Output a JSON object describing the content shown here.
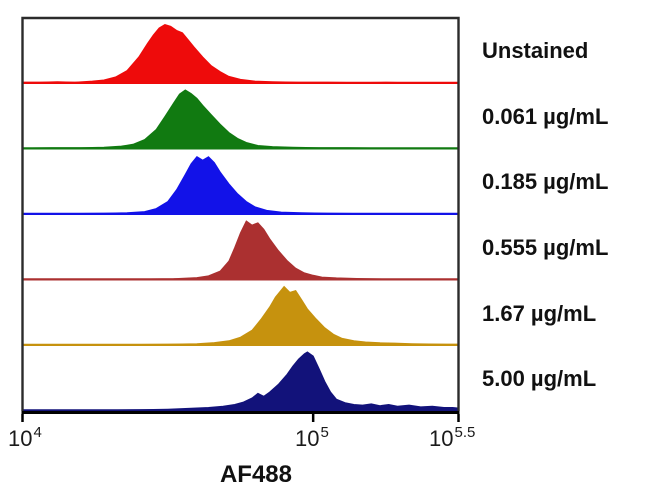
{
  "colors": {
    "background": "#ffffff",
    "frame": "#2b2b2b",
    "axis": "#000000",
    "text": "#111111"
  },
  "chart_data": {
    "type": "area",
    "subtype": "offset-overlay-flow-cytometry-histograms",
    "title": "",
    "xlabel": "AF488",
    "ylabel": "",
    "x_scale": "log10",
    "x_range_log10": [
      4.0,
      5.5
    ],
    "x_tick_logs": [
      4.0,
      5.0,
      5.5
    ],
    "x_ticks": [
      {
        "base": "10",
        "exp": "4"
      },
      {
        "base": "10",
        "exp": "5"
      },
      {
        "base": "10",
        "exp": "5.5"
      }
    ],
    "grid": false,
    "legend_position": "right",
    "series": [
      {
        "label": "Unstained",
        "color": "#ee0b0b",
        "peak_x_log10": 4.49,
        "points": [
          [
            4.0,
            0.02
          ],
          [
            4.06,
            0.02
          ],
          [
            4.12,
            0.03
          ],
          [
            4.18,
            0.02
          ],
          [
            4.24,
            0.04
          ],
          [
            4.28,
            0.06
          ],
          [
            4.32,
            0.11
          ],
          [
            4.36,
            0.22
          ],
          [
            4.4,
            0.45
          ],
          [
            4.43,
            0.68
          ],
          [
            4.45,
            0.82
          ],
          [
            4.47,
            0.94
          ],
          [
            4.49,
            1.0
          ],
          [
            4.51,
            0.97
          ],
          [
            4.53,
            0.9
          ],
          [
            4.55,
            0.86
          ],
          [
            4.57,
            0.74
          ],
          [
            4.59,
            0.62
          ],
          [
            4.62,
            0.45
          ],
          [
            4.65,
            0.3
          ],
          [
            4.68,
            0.2
          ],
          [
            4.71,
            0.12
          ],
          [
            4.75,
            0.07
          ],
          [
            4.8,
            0.04
          ],
          [
            4.86,
            0.03
          ],
          [
            4.95,
            0.02
          ],
          [
            5.05,
            0.02
          ],
          [
            5.15,
            0.015
          ],
          [
            5.25,
            0.02
          ],
          [
            5.35,
            0.01
          ],
          [
            5.45,
            0.01
          ],
          [
            5.5,
            0.01
          ]
        ]
      },
      {
        "label": "0.061 µg/mL",
        "color": "#117a11",
        "peak_x_log10": 4.56,
        "points": [
          [
            4.0,
            0.015
          ],
          [
            4.1,
            0.02
          ],
          [
            4.2,
            0.02
          ],
          [
            4.28,
            0.03
          ],
          [
            4.34,
            0.05
          ],
          [
            4.38,
            0.08
          ],
          [
            4.42,
            0.16
          ],
          [
            4.46,
            0.33
          ],
          [
            4.49,
            0.55
          ],
          [
            4.52,
            0.78
          ],
          [
            4.54,
            0.93
          ],
          [
            4.56,
            1.0
          ],
          [
            4.58,
            0.94
          ],
          [
            4.6,
            0.86
          ],
          [
            4.62,
            0.74
          ],
          [
            4.65,
            0.58
          ],
          [
            4.68,
            0.42
          ],
          [
            4.71,
            0.28
          ],
          [
            4.74,
            0.18
          ],
          [
            4.77,
            0.11
          ],
          [
            4.81,
            0.06
          ],
          [
            4.86,
            0.04
          ],
          [
            4.93,
            0.03
          ],
          [
            5.02,
            0.02
          ],
          [
            5.12,
            0.02
          ],
          [
            5.25,
            0.015
          ],
          [
            5.4,
            0.01
          ],
          [
            5.5,
            0.01
          ]
        ]
      },
      {
        "label": "0.185 µg/mL",
        "color": "#1212e8",
        "peak_x_log10": 4.6,
        "points": [
          [
            4.0,
            0.01
          ],
          [
            4.15,
            0.015
          ],
          [
            4.28,
            0.02
          ],
          [
            4.36,
            0.03
          ],
          [
            4.42,
            0.05
          ],
          [
            4.46,
            0.1
          ],
          [
            4.5,
            0.22
          ],
          [
            4.53,
            0.42
          ],
          [
            4.56,
            0.68
          ],
          [
            4.58,
            0.86
          ],
          [
            4.6,
            0.98
          ],
          [
            4.62,
            0.92
          ],
          [
            4.64,
            0.98
          ],
          [
            4.66,
            0.88
          ],
          [
            4.68,
            0.72
          ],
          [
            4.71,
            0.52
          ],
          [
            4.74,
            0.35
          ],
          [
            4.77,
            0.22
          ],
          [
            4.8,
            0.13
          ],
          [
            4.84,
            0.07
          ],
          [
            4.89,
            0.04
          ],
          [
            4.96,
            0.03
          ],
          [
            5.05,
            0.02
          ],
          [
            5.18,
            0.015
          ],
          [
            5.32,
            0.01
          ],
          [
            5.5,
            0.01
          ]
        ]
      },
      {
        "label": "0.555 µg/mL",
        "color": "#ab3030",
        "peak_x_log10": 4.77,
        "points": [
          [
            4.0,
            0.01
          ],
          [
            4.2,
            0.012
          ],
          [
            4.4,
            0.015
          ],
          [
            4.52,
            0.02
          ],
          [
            4.6,
            0.04
          ],
          [
            4.64,
            0.07
          ],
          [
            4.68,
            0.15
          ],
          [
            4.71,
            0.32
          ],
          [
            4.73,
            0.55
          ],
          [
            4.75,
            0.8
          ],
          [
            4.77,
            1.0
          ],
          [
            4.79,
            0.93
          ],
          [
            4.81,
            0.97
          ],
          [
            4.83,
            0.86
          ],
          [
            4.85,
            0.7
          ],
          [
            4.88,
            0.5
          ],
          [
            4.91,
            0.33
          ],
          [
            4.94,
            0.2
          ],
          [
            4.97,
            0.12
          ],
          [
            5.0,
            0.08
          ],
          [
            5.03,
            0.05
          ],
          [
            5.08,
            0.035
          ],
          [
            5.15,
            0.025
          ],
          [
            5.25,
            0.015
          ],
          [
            5.38,
            0.01
          ],
          [
            5.5,
            0.01
          ]
        ]
      },
      {
        "label": "1.67 µg/mL",
        "color": "#c6920e",
        "peak_x_log10": 4.9,
        "points": [
          [
            4.0,
            0.01
          ],
          [
            4.3,
            0.012
          ],
          [
            4.5,
            0.02
          ],
          [
            4.6,
            0.03
          ],
          [
            4.66,
            0.05
          ],
          [
            4.71,
            0.08
          ],
          [
            4.75,
            0.14
          ],
          [
            4.79,
            0.26
          ],
          [
            4.82,
            0.44
          ],
          [
            4.85,
            0.65
          ],
          [
            4.87,
            0.82
          ],
          [
            4.9,
            1.0
          ],
          [
            4.92,
            0.9
          ],
          [
            4.94,
            0.93
          ],
          [
            4.96,
            0.78
          ],
          [
            4.98,
            0.62
          ],
          [
            5.01,
            0.45
          ],
          [
            5.04,
            0.3
          ],
          [
            5.07,
            0.19
          ],
          [
            5.1,
            0.12
          ],
          [
            5.14,
            0.08
          ],
          [
            5.18,
            0.06
          ],
          [
            5.23,
            0.045
          ],
          [
            5.28,
            0.04
          ],
          [
            5.34,
            0.03
          ],
          [
            5.4,
            0.025
          ],
          [
            5.46,
            0.02
          ],
          [
            5.5,
            0.02
          ]
        ]
      },
      {
        "label": "5.00 µg/mL",
        "color": "#12127a",
        "peak_x_log10": 4.98,
        "points": [
          [
            4.0,
            0.008
          ],
          [
            4.25,
            0.012
          ],
          [
            4.4,
            0.02
          ],
          [
            4.5,
            0.03
          ],
          [
            4.58,
            0.045
          ],
          [
            4.64,
            0.06
          ],
          [
            4.69,
            0.08
          ],
          [
            4.73,
            0.11
          ],
          [
            4.76,
            0.15
          ],
          [
            4.79,
            0.22
          ],
          [
            4.81,
            0.3
          ],
          [
            4.83,
            0.25
          ],
          [
            4.85,
            0.32
          ],
          [
            4.88,
            0.45
          ],
          [
            4.91,
            0.62
          ],
          [
            4.93,
            0.76
          ],
          [
            4.95,
            0.88
          ],
          [
            4.97,
            0.97
          ],
          [
            4.98,
            1.0
          ],
          [
            5.0,
            0.93
          ],
          [
            5.02,
            0.72
          ],
          [
            5.04,
            0.5
          ],
          [
            5.06,
            0.32
          ],
          [
            5.08,
            0.2
          ],
          [
            5.11,
            0.14
          ],
          [
            5.14,
            0.11
          ],
          [
            5.17,
            0.1
          ],
          [
            5.2,
            0.12
          ],
          [
            5.23,
            0.09
          ],
          [
            5.26,
            0.11
          ],
          [
            5.29,
            0.08
          ],
          [
            5.33,
            0.1
          ],
          [
            5.37,
            0.07
          ],
          [
            5.41,
            0.08
          ],
          [
            5.45,
            0.06
          ],
          [
            5.48,
            0.06
          ],
          [
            5.5,
            0.05
          ]
        ]
      }
    ]
  }
}
